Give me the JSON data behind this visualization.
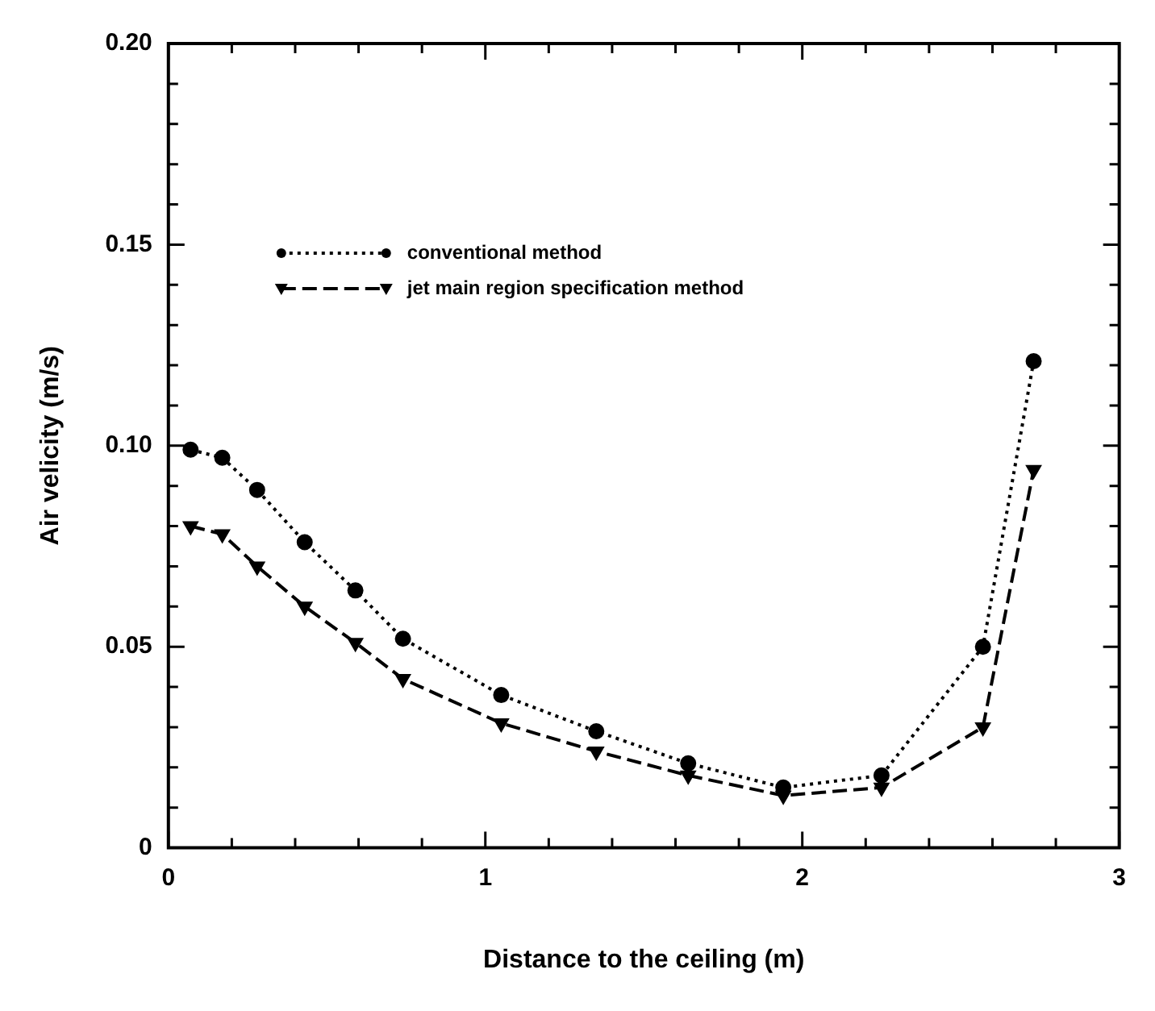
{
  "chart_data": {
    "type": "line",
    "xlabel": "Distance to the ceiling (m)",
    "ylabel": "Air velicity (m/s)",
    "xlim": [
      0,
      3
    ],
    "ylim": [
      0,
      0.2
    ],
    "xticks": [
      0,
      {
        "value": 0.2,
        "label": null
      },
      {
        "value": 0.4,
        "label": null
      },
      {
        "value": 0.6,
        "label": null
      },
      {
        "value": 0.8,
        "label": null
      },
      1,
      {
        "value": 1.2,
        "label": null
      },
      {
        "value": 1.4,
        "label": null
      },
      {
        "value": 1.6,
        "label": null
      },
      {
        "value": 1.8,
        "label": null
      },
      2,
      {
        "value": 2.2,
        "label": null
      },
      {
        "value": 2.4,
        "label": null
      },
      {
        "value": 2.6,
        "label": null
      },
      {
        "value": 2.8,
        "label": null
      },
      3
    ],
    "yticks": [
      0,
      {
        "value": 0.01,
        "label": null
      },
      {
        "value": 0.02,
        "label": null
      },
      {
        "value": 0.03,
        "label": null
      },
      {
        "value": 0.04,
        "label": null
      },
      {
        "value": 0.05,
        "label": "0.05"
      },
      {
        "value": 0.06,
        "label": null
      },
      {
        "value": 0.07,
        "label": null
      },
      {
        "value": 0.08,
        "label": null
      },
      {
        "value": 0.09,
        "label": null
      },
      {
        "value": 0.1,
        "label": "0.10"
      },
      {
        "value": 0.11,
        "label": null
      },
      {
        "value": 0.12,
        "label": null
      },
      {
        "value": 0.13,
        "label": null
      },
      {
        "value": 0.14,
        "label": null
      },
      {
        "value": 0.15,
        "label": "0.15"
      },
      {
        "value": 0.16,
        "label": null
      },
      {
        "value": 0.17,
        "label": null
      },
      {
        "value": 0.18,
        "label": null
      },
      {
        "value": 0.19,
        "label": null
      },
      {
        "value": 0.2,
        "label": "0.20"
      }
    ],
    "grid": false,
    "legend": "top left",
    "x": [
      0.07,
      0.17,
      0.28,
      0.43,
      0.59,
      0.74,
      1.05,
      1.35,
      1.64,
      1.94,
      2.25,
      2.57,
      2.73
    ],
    "series": [
      {
        "name": "conventional method",
        "color": "#000000",
        "marker": "circle",
        "line_style": "dotted",
        "values": [
          0.099,
          0.097,
          0.089,
          0.076,
          0.064,
          0.052,
          0.038,
          0.029,
          0.021,
          0.015,
          0.018,
          0.05,
          0.121
        ]
      },
      {
        "name": "jet main region specification method",
        "color": "#000000",
        "marker": "triangle",
        "line_style": "dashed",
        "values": [
          0.08,
          0.078,
          0.07,
          0.06,
          0.051,
          0.042,
          0.031,
          0.024,
          0.018,
          0.013,
          0.015,
          0.03,
          0.094
        ]
      }
    ]
  }
}
